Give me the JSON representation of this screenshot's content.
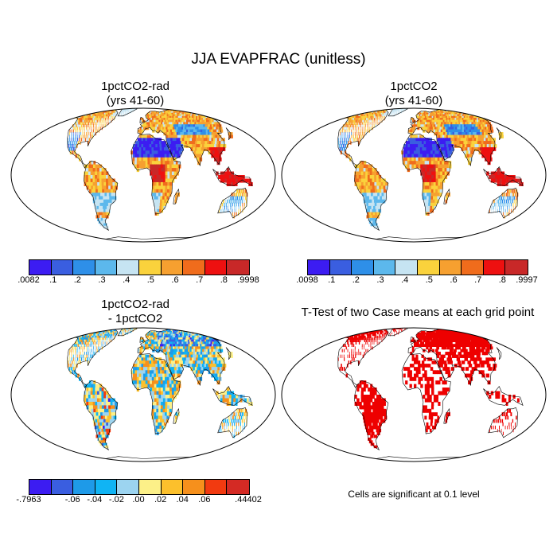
{
  "title": "JJA EVAPFRAC (unitless)",
  "panels": [
    {
      "id": "p1",
      "title_line1": "1pctCO2-rad",
      "title_line2": "(yrs 41-60)",
      "field": "evap"
    },
    {
      "id": "p2",
      "title_line1": "1pctCO2",
      "title_line2": "(yrs 41-60)",
      "field": "evap"
    },
    {
      "id": "p3",
      "title_line1": "1pctCO2-rad",
      "title_line2": "- 1pctCO2",
      "field": "diff"
    },
    {
      "id": "p4",
      "title_line1": "T-Test of two Case means at each grid point",
      "title_line2": "",
      "field": "ttest"
    }
  ],
  "colorbars": {
    "top_left": {
      "colors": [
        "#3c1cf2",
        "#3a5ee0",
        "#2e8fe8",
        "#5cb8ec",
        "#c6e4f2",
        "#fad23c",
        "#f6a030",
        "#f06c1c",
        "#ee1010",
        "#c82828"
      ],
      "labels": [
        ".0082",
        ".1",
        ".2",
        ".3",
        ".4",
        ".5",
        ".6",
        ".7",
        ".8",
        ".9998"
      ]
    },
    "top_right": {
      "colors": [
        "#3c1cf2",
        "#3a5ee0",
        "#2e8fe8",
        "#5cb8ec",
        "#c6e4f2",
        "#fad23c",
        "#f6a030",
        "#f06c1c",
        "#ee1010",
        "#c82828"
      ],
      "labels": [
        ".0098",
        ".1",
        ".2",
        ".3",
        ".4",
        ".5",
        ".6",
        ".7",
        ".8",
        ".9997"
      ]
    },
    "bottom_left": {
      "colors": [
        "#3c1cf2",
        "#3a5ee0",
        "#1e9ae8",
        "#10b4f4",
        "#9cd4f0",
        "#fcf088",
        "#fcc02c",
        "#f6901c",
        "#f23a10",
        "#d42a24"
      ],
      "labels": [
        "-.7963",
        "-.06",
        "-.04",
        "-.02",
        ".00",
        ".02",
        ".04",
        ".06",
        ".44402"
      ]
    }
  },
  "note": "Cells are significant at 0.1 level"
}
